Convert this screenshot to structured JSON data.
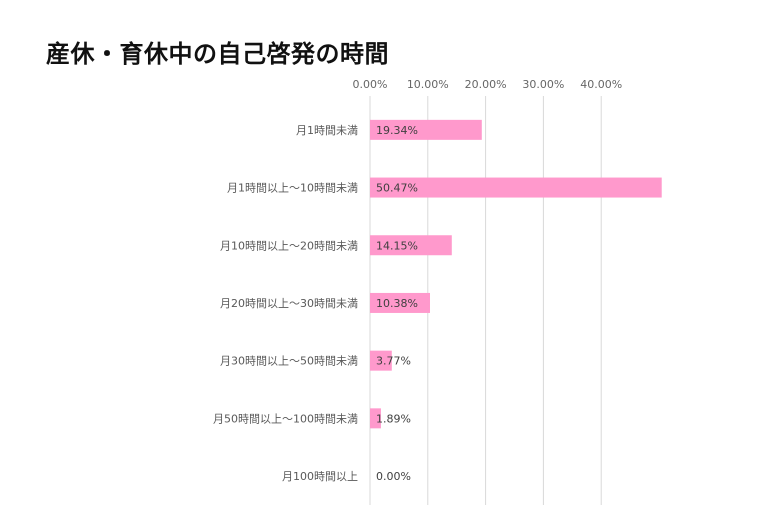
{
  "chart_data": {
    "type": "bar",
    "orientation": "horizontal",
    "title": "産休・育休中の自己啓発の時間",
    "categories": [
      "月1時間未満",
      "月1時間以上～10時間未満",
      "月10時間以上～20時間未満",
      "月20時間以上～30時間未満",
      "月30時間以上～50時間未満",
      "月50時間以上～100時間未満",
      "月100時間以上"
    ],
    "values": [
      19.34,
      50.47,
      14.15,
      10.38,
      3.77,
      1.89,
      0.0
    ],
    "data_labels": [
      "19.34%",
      "50.47%",
      "14.15%",
      "10.38%",
      "3.77%",
      "1.89%",
      "0.00%"
    ],
    "x_ticks": [
      "0.00%",
      "10.00%",
      "20.00%",
      "30.00%",
      "40.00%"
    ],
    "x_tick_values": [
      0,
      10,
      20,
      30,
      40
    ],
    "xlim": [
      0,
      45
    ],
    "grid": true,
    "axis_position": "top",
    "legend": "none",
    "bar_color": "#FF99CC",
    "grid_color": "#D9D9D9"
  }
}
